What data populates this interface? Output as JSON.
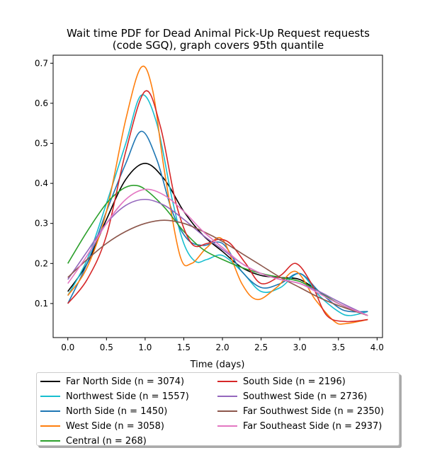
{
  "chart_data": {
    "type": "line",
    "title": "Wait time PDF for Dead Animal Pick-Up Request  requests\n(code SGQ), graph covers 95th quantile",
    "xlabel": "Time (days)",
    "ylabel": "",
    "xlim": [
      -0.19,
      4.07
    ],
    "ylim": [
      0.015,
      0.72
    ],
    "xticks": [
      0.0,
      0.5,
      1.0,
      1.5,
      2.0,
      2.5,
      3.0,
      3.5,
      4.0
    ],
    "xtick_labels": [
      "0.0",
      "0.5",
      "1.0",
      "1.5",
      "2.0",
      "2.5",
      "3.0",
      "3.5",
      "4.0"
    ],
    "yticks": [
      0.1,
      0.2,
      0.3,
      0.4,
      0.5,
      0.6,
      0.7
    ],
    "ytick_labels": [
      "0.1",
      "0.2",
      "0.3",
      "0.4",
      "0.5",
      "0.6",
      "0.7"
    ],
    "grid": false,
    "legend_position": "below",
    "legend_columns": 2,
    "series": [
      {
        "name": "Far North Side (n = 3074)",
        "color": "#000000",
        "x": [
          0.0,
          0.25,
          0.5,
          0.75,
          1.0,
          1.25,
          1.5,
          1.75,
          2.0,
          2.25,
          2.5,
          2.75,
          3.0,
          3.25,
          3.5,
          3.88
        ],
        "y": [
          0.13,
          0.2,
          0.31,
          0.41,
          0.45,
          0.41,
          0.33,
          0.27,
          0.23,
          0.19,
          0.17,
          0.165,
          0.16,
          0.13,
          0.1,
          0.07
        ]
      },
      {
        "name": "Northwest Side (n = 1557)",
        "color": "#17becf",
        "x": [
          0.0,
          0.25,
          0.5,
          0.75,
          0.95,
          1.15,
          1.35,
          1.5,
          1.65,
          1.8,
          2.0,
          2.25,
          2.5,
          2.75,
          3.0,
          3.25,
          3.5,
          3.65,
          3.88
        ],
        "y": [
          0.12,
          0.21,
          0.35,
          0.5,
          0.62,
          0.55,
          0.36,
          0.25,
          0.205,
          0.21,
          0.22,
          0.18,
          0.13,
          0.14,
          0.175,
          0.12,
          0.08,
          0.07,
          0.08
        ]
      },
      {
        "name": "North Side (n = 1450)",
        "color": "#1f77b4",
        "x": [
          0.0,
          0.25,
          0.5,
          0.75,
          0.95,
          1.15,
          1.35,
          1.55,
          1.75,
          2.0,
          2.25,
          2.5,
          2.75,
          3.0,
          3.25,
          3.5,
          3.65,
          3.88
        ],
        "y": [
          0.1,
          0.2,
          0.33,
          0.45,
          0.53,
          0.46,
          0.33,
          0.26,
          0.245,
          0.25,
          0.18,
          0.14,
          0.15,
          0.175,
          0.13,
          0.09,
          0.08,
          0.08
        ]
      },
      {
        "name": "West Side (n = 3058)",
        "color": "#ff7f0e",
        "x": [
          0.0,
          0.25,
          0.5,
          0.75,
          0.95,
          1.1,
          1.25,
          1.45,
          1.6,
          1.8,
          2.0,
          2.25,
          2.45,
          2.7,
          2.95,
          3.2,
          3.45,
          3.6,
          3.88
        ],
        "y": [
          0.12,
          0.19,
          0.33,
          0.56,
          0.69,
          0.63,
          0.43,
          0.22,
          0.2,
          0.24,
          0.26,
          0.15,
          0.11,
          0.14,
          0.18,
          0.11,
          0.055,
          0.05,
          0.06
        ]
      },
      {
        "name": "Central (n = 268)",
        "color": "#2ca02c",
        "x": [
          0.0,
          0.25,
          0.5,
          0.7,
          0.85,
          1.0,
          1.25,
          1.5,
          1.75,
          2.0,
          2.25,
          2.5,
          2.75,
          3.0,
          3.25,
          3.5,
          3.88
        ],
        "y": [
          0.2,
          0.28,
          0.35,
          0.385,
          0.395,
          0.385,
          0.34,
          0.28,
          0.235,
          0.21,
          0.19,
          0.175,
          0.165,
          0.155,
          0.13,
          0.1,
          0.07
        ]
      },
      {
        "name": "South Side (n = 2196)",
        "color": "#d62728",
        "x": [
          0.0,
          0.25,
          0.5,
          0.75,
          1.0,
          1.2,
          1.4,
          1.6,
          1.8,
          1.95,
          2.1,
          2.3,
          2.5,
          2.75,
          2.95,
          3.15,
          3.35,
          3.6,
          3.88
        ],
        "y": [
          0.1,
          0.16,
          0.27,
          0.48,
          0.63,
          0.54,
          0.35,
          0.25,
          0.25,
          0.26,
          0.25,
          0.2,
          0.15,
          0.17,
          0.2,
          0.15,
          0.07,
          0.055,
          0.06
        ]
      },
      {
        "name": "Southwest Side (n = 2736)",
        "color": "#9467bd",
        "x": [
          0.0,
          0.25,
          0.5,
          0.75,
          1.0,
          1.25,
          1.5,
          1.75,
          2.0,
          2.25,
          2.5,
          2.75,
          3.0,
          3.25,
          3.5,
          3.88
        ],
        "y": [
          0.16,
          0.23,
          0.3,
          0.345,
          0.36,
          0.345,
          0.31,
          0.27,
          0.235,
          0.2,
          0.175,
          0.16,
          0.15,
          0.13,
          0.105,
          0.07
        ]
      },
      {
        "name": "Far Southwest Side (n = 2350)",
        "color": "#8c564b",
        "x": [
          0.0,
          0.25,
          0.5,
          0.75,
          1.0,
          1.25,
          1.5,
          1.75,
          2.0,
          2.25,
          2.5,
          2.75,
          3.0,
          3.25,
          3.5,
          3.88
        ],
        "y": [
          0.165,
          0.21,
          0.25,
          0.28,
          0.3,
          0.308,
          0.3,
          0.28,
          0.255,
          0.225,
          0.195,
          0.165,
          0.14,
          0.115,
          0.095,
          0.07
        ]
      },
      {
        "name": "Far Southeast Side (n = 2937)",
        "color": "#e377c2",
        "x": [
          0.0,
          0.25,
          0.5,
          0.75,
          1.0,
          1.25,
          1.5,
          1.75,
          2.0,
          2.25,
          2.5,
          2.75,
          3.0,
          3.25,
          3.5,
          3.88
        ],
        "y": [
          0.15,
          0.22,
          0.3,
          0.36,
          0.385,
          0.37,
          0.33,
          0.28,
          0.24,
          0.2,
          0.175,
          0.16,
          0.15,
          0.125,
          0.1,
          0.07
        ]
      }
    ]
  }
}
